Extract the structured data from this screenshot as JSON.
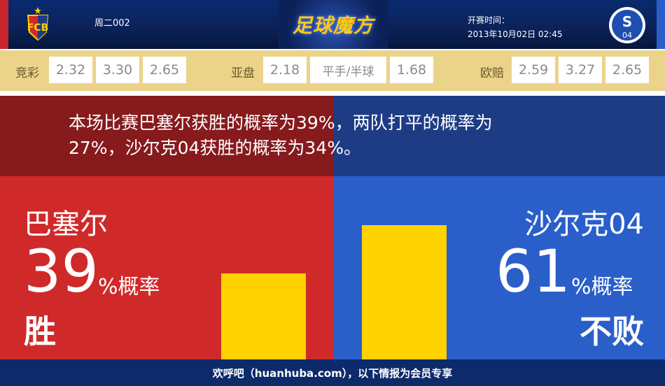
{
  "header": {
    "match_no": "周二002",
    "logo_text": "足球魔方",
    "time_label": "开赛时间：",
    "time_value": "2013年10月02日 02:45",
    "home_crest": "FCB",
    "away_crest": "S04"
  },
  "odds": {
    "jingcai": {
      "label": "竞彩",
      "values": [
        "2.32",
        "3.30",
        "2.65"
      ]
    },
    "yapan": {
      "label": "亚盘",
      "values": [
        "2.18",
        "平手/半球",
        "1.68"
      ]
    },
    "oupei": {
      "label": "欧赔",
      "values": [
        "2.59",
        "3.27",
        "2.65"
      ]
    }
  },
  "summary": {
    "line1": "本场比赛巴塞尔获胜的概率为39%，两队打平的概率为",
    "line2": "27%，沙尔克04获胜的概率为34%。"
  },
  "home": {
    "name": "巴塞尔",
    "percent": 39,
    "percent_text": "39",
    "unit": "%概率",
    "result": "胜"
  },
  "away": {
    "name": "沙尔克04",
    "percent": 61,
    "percent_text": "61",
    "unit": "%概率",
    "result": "不败"
  },
  "footer": {
    "text": "欢呼吧（huanhuba.com），以下情报为会员专享"
  },
  "colors": {
    "home": "#d0292a",
    "away": "#2a5fca",
    "bar": "#ffd200",
    "odds_bg": "#ebd38a"
  }
}
